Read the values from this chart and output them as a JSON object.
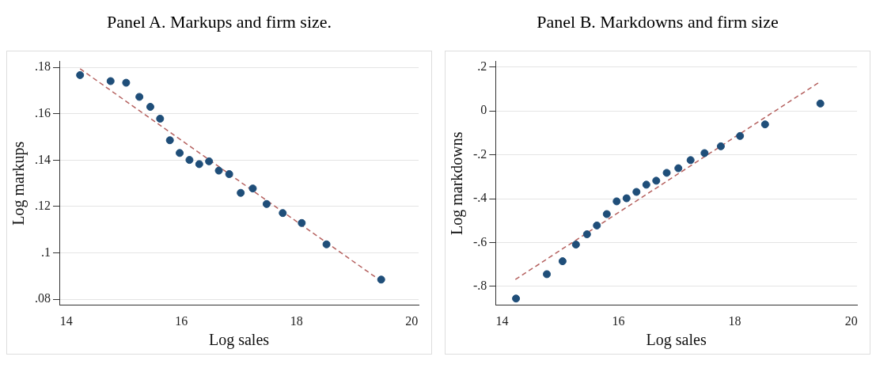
{
  "chart_data": [
    {
      "type": "scatter",
      "title": "Panel A. Markups and firm size.",
      "xlabel": "Log sales",
      "ylabel": "Log markups",
      "xlim": [
        13.88,
        20.12
      ],
      "xticks": [
        14,
        16,
        18,
        20
      ],
      "ylim": [
        0.0774,
        0.1826
      ],
      "yticks": [
        {
          "value": 0.08,
          "label": ".08"
        },
        {
          "value": 0.1,
          "label": ".1"
        },
        {
          "value": 0.12,
          "label": ".12"
        },
        {
          "value": 0.14,
          "label": ".14"
        },
        {
          "value": 0.16,
          "label": ".16"
        },
        {
          "value": 0.18,
          "label": ".18"
        }
      ],
      "grid": "y",
      "legend": false,
      "series": [
        {
          "type": "scatter",
          "color": "#1f4e79",
          "marker": "circle",
          "x": [
            14.24,
            14.77,
            15.04,
            15.27,
            15.46,
            15.63,
            15.8,
            15.97,
            16.14,
            16.31,
            16.48,
            16.65,
            16.83,
            17.03,
            17.24,
            17.48,
            17.76,
            18.09,
            18.52,
            19.47
          ],
          "values": [
            0.1767,
            0.1741,
            0.1734,
            0.1673,
            0.163,
            0.1579,
            0.1486,
            0.1431,
            0.1401,
            0.1383,
            0.1395,
            0.1355,
            0.134,
            0.1259,
            0.1278,
            0.1211,
            0.1172,
            0.1129,
            0.1037,
            0.0885
          ]
        },
        {
          "type": "line",
          "color": "#b5615f",
          "line_style": "dashed",
          "marker": "none",
          "x": [
            14.24,
            19.46
          ],
          "values": [
            0.1794,
            0.088
          ]
        }
      ]
    },
    {
      "type": "scatter",
      "title": "Panel B. Markdowns and firm size",
      "xlabel": "Log sales",
      "ylabel": "Log markdowns",
      "xlim": [
        13.89,
        20.1
      ],
      "xticks": [
        14,
        16,
        18,
        20
      ],
      "ylim": [
        -0.886,
        0.226
      ],
      "yticks": [
        {
          "value": -0.8,
          "label": "-.8"
        },
        {
          "value": -0.6,
          "label": "-.6"
        },
        {
          "value": -0.4,
          "label": "-.4"
        },
        {
          "value": -0.2,
          "label": "-.2"
        },
        0,
        {
          "value": 0.2,
          "label": ".2"
        }
      ],
      "grid": "y",
      "legend": false,
      "series": [
        {
          "type": "scatter",
          "color": "#1f4e79",
          "marker": "circle",
          "x": [
            14.24,
            14.77,
            15.04,
            15.27,
            15.46,
            15.63,
            15.8,
            15.97,
            16.14,
            16.31,
            16.48,
            16.65,
            16.83,
            17.03,
            17.24,
            17.48,
            17.76,
            18.09,
            18.52,
            19.47
          ],
          "values": [
            -0.855,
            -0.744,
            -0.685,
            -0.609,
            -0.562,
            -0.522,
            -0.47,
            -0.412,
            -0.398,
            -0.369,
            -0.336,
            -0.318,
            -0.282,
            -0.261,
            -0.224,
            -0.192,
            -0.161,
            -0.114,
            -0.061,
            0.034
          ]
        },
        {
          "type": "line",
          "color": "#b5615f",
          "line_style": "dashed",
          "marker": "none",
          "x": [
            14.23,
            19.44
          ],
          "values": [
            -0.768,
            0.129
          ]
        }
      ]
    }
  ]
}
